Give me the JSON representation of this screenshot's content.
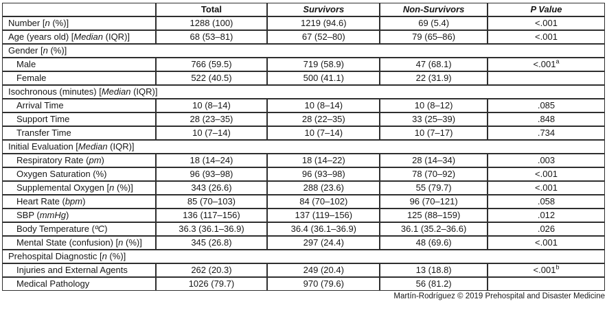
{
  "table": {
    "columns": [
      {
        "key": "label",
        "label": ""
      },
      {
        "key": "total",
        "label": "Total"
      },
      {
        "key": "survivors",
        "label": "Survivors"
      },
      {
        "key": "non_survivors",
        "label": "Non-Survivors"
      },
      {
        "key": "p_value",
        "label": "P Value"
      }
    ],
    "rows": [
      {
        "type": "data",
        "indent": false,
        "label": [
          {
            "t": "Number [",
            "i": false
          },
          {
            "t": "n",
            "i": true
          },
          {
            "t": " (%)]",
            "i": false
          }
        ],
        "total": "1288 (100)",
        "survivors": "1219 (94.6)",
        "non_survivors": "69 (5.4)",
        "p": "<.001",
        "p_sup": ""
      },
      {
        "type": "data",
        "indent": false,
        "label": [
          {
            "t": "Age (years old) [",
            "i": false
          },
          {
            "t": "Median",
            "i": true
          },
          {
            "t": " (IQR)]",
            "i": false
          }
        ],
        "total": "68 (53–81)",
        "survivors": "67 (52–80)",
        "non_survivors": "79 (65–86)",
        "p": "<.001",
        "p_sup": ""
      },
      {
        "type": "section",
        "label": [
          {
            "t": "Gender [",
            "i": false
          },
          {
            "t": "n",
            "i": true
          },
          {
            "t": " (%)]",
            "i": false
          }
        ]
      },
      {
        "type": "data",
        "indent": true,
        "label": [
          {
            "t": "Male",
            "i": false
          }
        ],
        "total": "766 (59.5)",
        "survivors": "719 (58.9)",
        "non_survivors": "47 (68.1)",
        "p": "<.001",
        "p_sup": "a"
      },
      {
        "type": "data",
        "indent": true,
        "label": [
          {
            "t": "Female",
            "i": false
          }
        ],
        "total": "522 (40.5)",
        "survivors": "500 (41.1)",
        "non_survivors": "22 (31.9)",
        "p": "",
        "p_sup": ""
      },
      {
        "type": "section",
        "label": [
          {
            "t": "Isochronous (minutes) [",
            "i": false
          },
          {
            "t": "Median",
            "i": true
          },
          {
            "t": " (IQR)]",
            "i": false
          }
        ]
      },
      {
        "type": "data",
        "indent": true,
        "label": [
          {
            "t": "Arrival Time",
            "i": false
          }
        ],
        "total": "10 (8–14)",
        "survivors": "10 (8–14)",
        "non_survivors": "10 (8–12)",
        "p": ".085",
        "p_sup": ""
      },
      {
        "type": "data",
        "indent": true,
        "label": [
          {
            "t": "Support Time",
            "i": false
          }
        ],
        "total": "28 (23–35)",
        "survivors": "28 (22–35)",
        "non_survivors": "33 (25–39)",
        "p": ".848",
        "p_sup": ""
      },
      {
        "type": "data",
        "indent": true,
        "label": [
          {
            "t": "Transfer Time",
            "i": false
          }
        ],
        "total": "10 (7–14)",
        "survivors": "10 (7–14)",
        "non_survivors": "10 (7–17)",
        "p": ".734",
        "p_sup": ""
      },
      {
        "type": "section",
        "label": [
          {
            "t": "Initial Evaluation [",
            "i": false
          },
          {
            "t": "Median",
            "i": true
          },
          {
            "t": " (IQR)]",
            "i": false
          }
        ]
      },
      {
        "type": "data",
        "indent": true,
        "label": [
          {
            "t": "Respiratory Rate (",
            "i": false
          },
          {
            "t": "pm",
            "i": true
          },
          {
            "t": ")",
            "i": false
          }
        ],
        "total": "18 (14–24)",
        "survivors": "18 (14–22)",
        "non_survivors": "28 (14–34)",
        "p": ".003",
        "p_sup": ""
      },
      {
        "type": "data",
        "indent": true,
        "label": [
          {
            "t": "Oxygen Saturation (%)",
            "i": false
          }
        ],
        "total": "96 (93–98)",
        "survivors": "96 (93–98)",
        "non_survivors": "78 (70–92)",
        "p": "<.001",
        "p_sup": ""
      },
      {
        "type": "data",
        "indent": true,
        "label": [
          {
            "t": "Supplemental Oxygen [",
            "i": false
          },
          {
            "t": "n",
            "i": true
          },
          {
            "t": " (%)]",
            "i": false
          }
        ],
        "total": "343 (26.6)",
        "survivors": "288 (23.6)",
        "non_survivors": "55 (79.7)",
        "p": "<.001",
        "p_sup": ""
      },
      {
        "type": "data",
        "indent": true,
        "label": [
          {
            "t": "Heart Rate (",
            "i": false
          },
          {
            "t": "bpm",
            "i": true
          },
          {
            "t": ")",
            "i": false
          }
        ],
        "total": "85 (70–103)",
        "survivors": "84 (70–102)",
        "non_survivors": "96 (70–121)",
        "p": ".058",
        "p_sup": ""
      },
      {
        "type": "data",
        "indent": true,
        "label": [
          {
            "t": "SBP (",
            "i": false
          },
          {
            "t": "mmHg",
            "i": true
          },
          {
            "t": ")",
            "i": false
          }
        ],
        "total": "136 (117–156)",
        "survivors": "137 (119–156)",
        "non_survivors": "125 (88–159)",
        "p": ".012",
        "p_sup": ""
      },
      {
        "type": "data",
        "indent": true,
        "label": [
          {
            "t": "Body Temperature (",
            "i": false
          },
          {
            "t": "ºC",
            "i": true
          },
          {
            "t": ")",
            "i": false
          }
        ],
        "total": "36.3 (36.1–36.9)",
        "survivors": "36.4 (36.1–36.9)",
        "non_survivors": "36.1 (35.2–36.6)",
        "p": ".026",
        "p_sup": ""
      },
      {
        "type": "data",
        "indent": true,
        "label": [
          {
            "t": "Mental State (confusion) [",
            "i": false
          },
          {
            "t": "n",
            "i": true
          },
          {
            "t": " (%)]",
            "i": false
          }
        ],
        "total": "345 (26.8)",
        "survivors": "297 (24.4)",
        "non_survivors": "48 (69.6)",
        "p": "<.001",
        "p_sup": ""
      },
      {
        "type": "section",
        "label": [
          {
            "t": "Prehospital Diagnostic [",
            "i": false
          },
          {
            "t": "n",
            "i": true
          },
          {
            "t": " (%)]",
            "i": false
          }
        ]
      },
      {
        "type": "data",
        "indent": true,
        "label": [
          {
            "t": "Injuries and External Agents",
            "i": false
          }
        ],
        "total": "262 (20.3)",
        "survivors": "249 (20.4)",
        "non_survivors": "13 (18.8)",
        "p": "<.001",
        "p_sup": "b"
      },
      {
        "type": "data",
        "indent": true,
        "label": [
          {
            "t": "Medical Pathology",
            "i": false
          }
        ],
        "total": "1026 (79.7)",
        "survivors": "970 (79.6)",
        "non_survivors": "56 (81.2)",
        "p": "",
        "p_sup": ""
      }
    ]
  },
  "footer": {
    "credit": "Martín-Rodríguez © 2019 Prehospital and Disaster Medicine"
  }
}
